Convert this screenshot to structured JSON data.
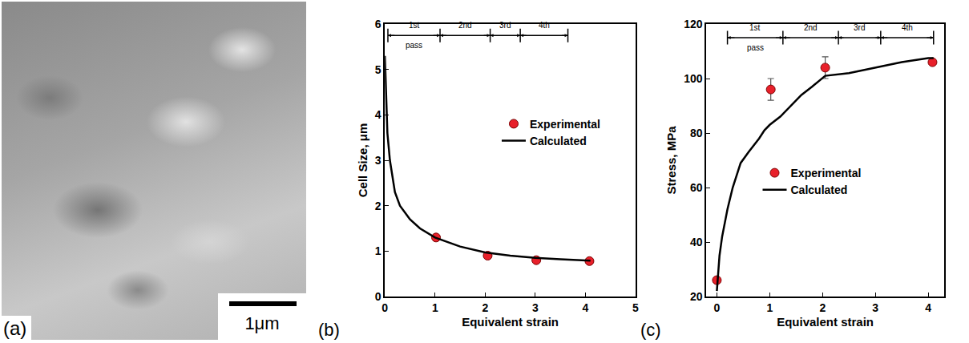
{
  "chart_data": [
    {
      "type": "image",
      "panel": "(a)",
      "scale_bar": "1μm"
    },
    {
      "type": "scatter",
      "panel": "(b)",
      "x_label": "Equivalent strain",
      "y_label": "Cell Size, μm",
      "xlim": [
        0,
        5
      ],
      "xticks": [
        0,
        1,
        2,
        3,
        4,
        5
      ],
      "ylim": [
        0,
        6
      ],
      "yticks": [
        0,
        1,
        2,
        3,
        4,
        5,
        6
      ],
      "legend": "right",
      "passes": {
        "labels": [
          "1st",
          "2nd",
          "3rd",
          "4th"
        ],
        "caption": "pass",
        "bounds": [
          0.06,
          1.1,
          2.1,
          2.7,
          3.65
        ],
        "level": 5.75
      },
      "series": [
        {
          "name": "Experimental",
          "type": "scatter",
          "marker": "circle",
          "color": "#e8202a",
          "x": [
            1.02,
            2.05,
            3.02,
            4.08
          ],
          "values": [
            1.3,
            0.9,
            0.8,
            0.78
          ]
        },
        {
          "name": "Calculated",
          "type": "line",
          "line_style": "solid",
          "color": "#000000",
          "x": [
            0,
            0.02,
            0.05,
            0.1,
            0.2,
            0.3,
            0.5,
            0.7,
            1.0,
            1.5,
            2.0,
            2.5,
            3.0,
            3.5,
            4.0,
            4.1
          ],
          "values": [
            5.3,
            4.5,
            3.6,
            3.0,
            2.3,
            2.0,
            1.7,
            1.5,
            1.3,
            1.1,
            0.97,
            0.9,
            0.85,
            0.82,
            0.8,
            0.79
          ]
        }
      ]
    },
    {
      "type": "scatter",
      "panel": "(c)",
      "x_label": "Equivalent strain",
      "y_label": "Stress, MPa",
      "xlim": [
        -0.2,
        4.3
      ],
      "xticks": [
        0,
        1,
        2,
        3,
        4
      ],
      "ylim": [
        20,
        120
      ],
      "yticks": [
        20,
        40,
        60,
        80,
        100,
        120
      ],
      "legend": "center",
      "passes": {
        "labels": [
          "1st",
          "2nd",
          "3rd",
          "4th"
        ],
        "caption": "pass",
        "bounds": [
          0.2,
          1.25,
          2.3,
          3.1,
          4.1
        ],
        "level": 115
      },
      "series": [
        {
          "name": "Experimental",
          "type": "scatter",
          "marker": "circle",
          "color": "#e8202a",
          "x": [
            0,
            1.02,
            2.05,
            4.08
          ],
          "values": [
            26,
            96,
            104,
            106
          ],
          "error": [
            null,
            4,
            4,
            null
          ]
        },
        {
          "name": "Calculated",
          "type": "line",
          "line_style": "solid",
          "color": "#000000",
          "x": [
            0,
            0.05,
            0.1,
            0.2,
            0.3,
            0.45,
            0.6,
            0.8,
            0.9,
            1.0,
            1.2,
            1.4,
            1.6,
            1.8,
            2.0,
            2.05,
            2.5,
            3.0,
            3.1,
            3.5,
            4.0,
            4.1
          ],
          "values": [
            22,
            35,
            42,
            52,
            60,
            69,
            73,
            78,
            81,
            83,
            86,
            90,
            94,
            97,
            100,
            101,
            102,
            104,
            104.5,
            106,
            107.5,
            107.5
          ]
        }
      ]
    }
  ]
}
